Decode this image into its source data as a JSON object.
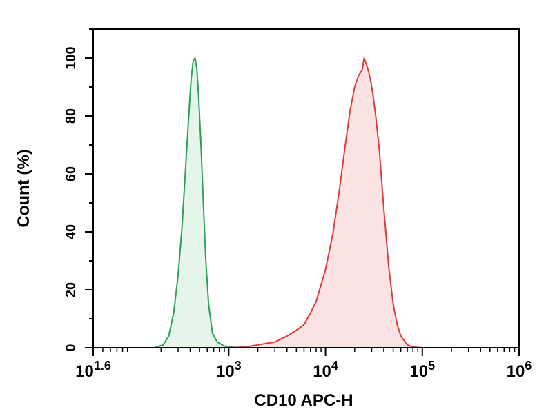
{
  "chart_data": {
    "type": "area",
    "title": "",
    "xlabel": "CD10 APC-H",
    "ylabel": "Count (%)",
    "x_scale": "log",
    "xlim": [
      39.8,
      1000000
    ],
    "ylim": [
      0,
      110
    ],
    "x_ticks": [
      {
        "base": "10",
        "exp": "1.6",
        "value": 39.8
      },
      {
        "base": "10",
        "exp": "3",
        "value": 1000
      },
      {
        "base": "10",
        "exp": "4",
        "value": 10000
      },
      {
        "base": "10",
        "exp": "5",
        "value": 100000
      },
      {
        "base": "10",
        "exp": "6",
        "value": 1000000
      }
    ],
    "y_ticks": [
      0,
      20,
      40,
      60,
      80,
      100
    ],
    "grid": false,
    "legend": "none",
    "series": [
      {
        "color": "#2ca05a",
        "fill": "#e6f5ea",
        "x": [
          170,
          210,
          240,
          270,
          300,
          330,
          360,
          390,
          410,
          430,
          450,
          470,
          490,
          520,
          550,
          580,
          620,
          680,
          760,
          900,
          1100,
          1500
        ],
        "y": [
          0,
          1,
          4,
          12,
          25,
          42,
          63,
          82,
          93,
          99,
          100,
          96,
          86,
          68,
          48,
          30,
          15,
          5,
          2,
          0.6,
          0.2,
          0
        ]
      },
      {
        "color": "#e03a3a",
        "fill": "#fbe3e3",
        "x": [
          1000,
          1500,
          2000,
          3000,
          4000,
          5000,
          6000,
          7000,
          8000,
          10000,
          12000,
          14000,
          16000,
          18000,
          20000,
          22000,
          24000,
          25000,
          27000,
          29000,
          31000,
          33000,
          36000,
          40000,
          45000,
          50000,
          55000,
          60000,
          70000,
          80000,
          100000
        ],
        "y": [
          0,
          0.3,
          1,
          2,
          4,
          6,
          8,
          12,
          16,
          27,
          40,
          55,
          70,
          82,
          90,
          94,
          96,
          100,
          97,
          93,
          87,
          80,
          68,
          48,
          28,
          15,
          8,
          4,
          1,
          0.3,
          0
        ]
      }
    ]
  }
}
